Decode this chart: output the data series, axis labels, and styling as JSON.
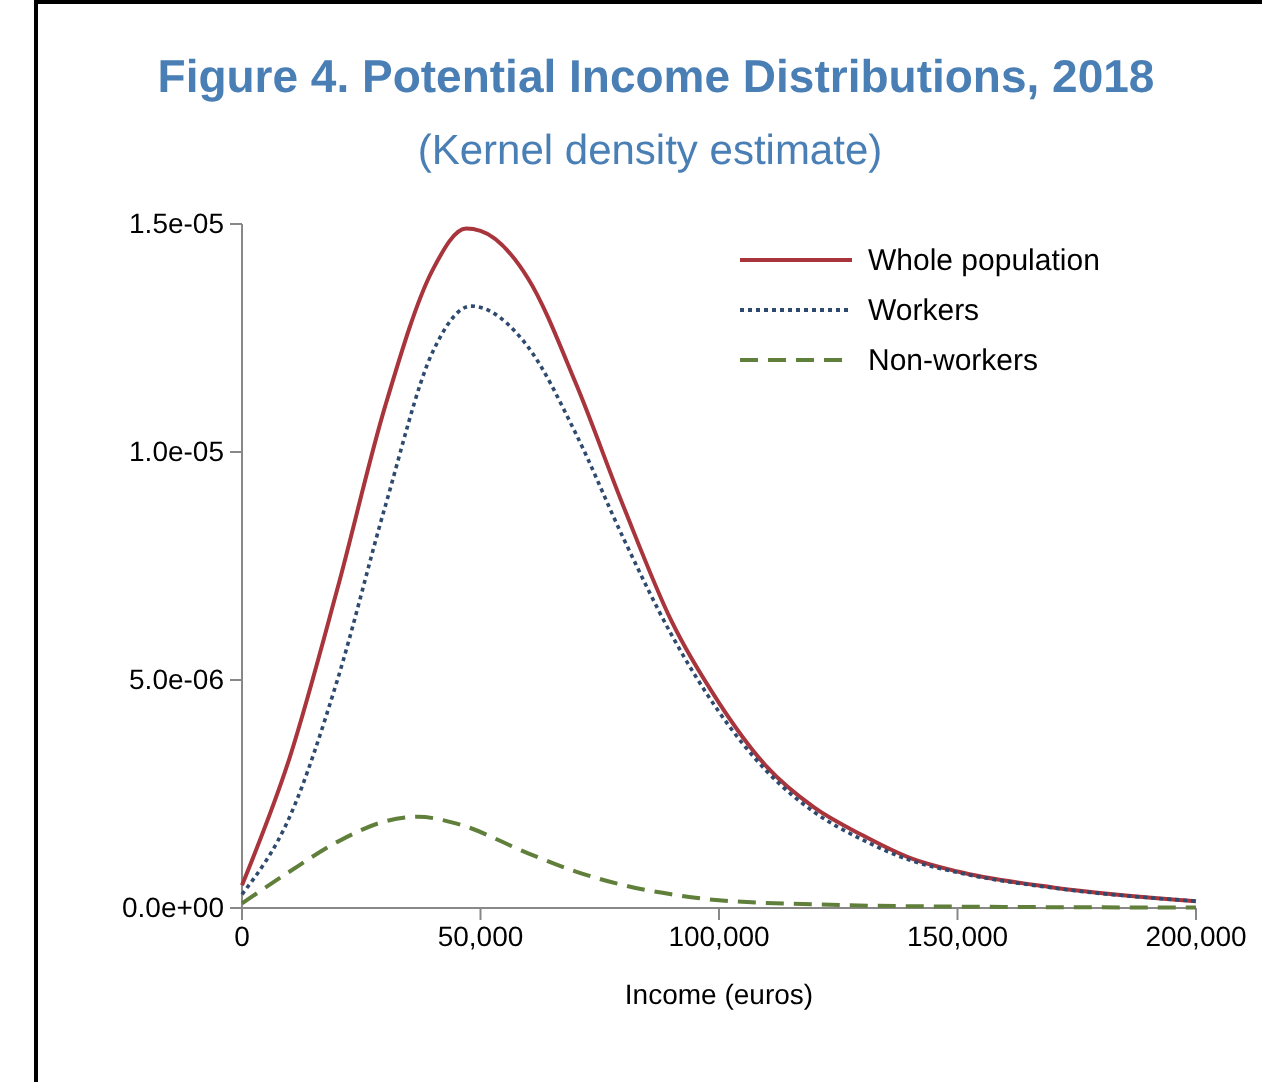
{
  "chart_data": {
    "type": "line",
    "title": "Figure 4. Potential Income Distributions, 2018",
    "subtitle": "(Kernel density estimate)",
    "xlabel": "Income (euros)",
    "xlim": [
      0,
      200000
    ],
    "xticks": [
      {
        "value": 0,
        "label": "0"
      },
      {
        "value": 50000,
        "label": "50,000"
      },
      {
        "value": 100000,
        "label": "100,000"
      },
      {
        "value": 150000,
        "label": "150,000"
      },
      {
        "value": 200000,
        "label": "200,000"
      }
    ],
    "ylim": [
      0,
      1.5e-05
    ],
    "yticks": [
      {
        "value": 0,
        "label": "0.0e+00"
      },
      {
        "value": 5e-06,
        "label": "5.0e-06"
      },
      {
        "value": 1e-05,
        "label": "1.0e-05"
      },
      {
        "value": 1.5e-05,
        "label": "1.5e-05"
      }
    ],
    "grid": false,
    "legend": "top right",
    "marker": "none",
    "x": [
      0,
      10000,
      20000,
      30000,
      40000,
      47000,
      50000,
      60000,
      70000,
      80000,
      90000,
      100000,
      110000,
      120000,
      130000,
      140000,
      150000,
      170000,
      200000
    ],
    "series": [
      {
        "name": "Whole population",
        "color": "#a8343c",
        "line_style": "solid",
        "values": [
          5e-07,
          3.3e-06,
          7e-06,
          1.1e-05,
          1.4e-05,
          1.49e-05,
          1.485e-05,
          1.38e-05,
          1.15e-05,
          8.8e-06,
          6.3e-06,
          4.5e-06,
          3.1e-06,
          2.2e-06,
          1.6e-06,
          1.1e-06,
          8e-07,
          4.5e-07,
          1.5e-07
        ]
      },
      {
        "name": "Workers",
        "color": "#2e4a6e",
        "line_style": "dotted",
        "x": [
          0,
          10000,
          20000,
          30000,
          40000,
          48000,
          60000,
          70000,
          80000,
          90000,
          100000,
          110000,
          120000,
          130000,
          140000,
          150000,
          170000,
          200000
        ],
        "values": [
          3e-07,
          2e-06,
          5e-06,
          8.8e-06,
          1.22e-05,
          1.32e-05,
          1.23e-05,
          1.04e-05,
          8.1e-06,
          6e-06,
          4.3e-06,
          3e-06,
          2.1e-06,
          1.5e-06,
          1.05e-06,
          7.8e-07,
          4.4e-07,
          1.5e-07
        ]
      },
      {
        "name": "Non-workers",
        "color": "#5f7f3a",
        "line_style": "dashed",
        "x": [
          0,
          10000,
          20000,
          30000,
          37000,
          45000,
          60000,
          70000,
          80000,
          90000,
          100000,
          120000,
          150000,
          200000
        ],
        "values": [
          1e-07,
          8e-07,
          1.45e-06,
          1.9e-06,
          2e-06,
          1.85e-06,
          1.2e-06,
          8e-07,
          5e-07,
          3e-07,
          1.7e-07,
          8e-08,
          3e-08,
          1e-08
        ]
      }
    ]
  }
}
